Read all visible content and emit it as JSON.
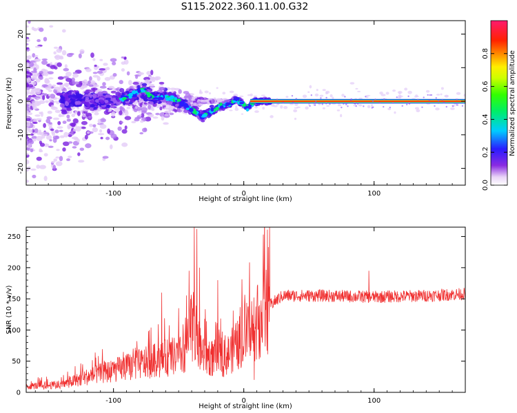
{
  "title": "S115.2022.360.11.00.G32",
  "chart_data": [
    {
      "type": "heatmap",
      "xlabel": "Height of straight line (km)",
      "ylabel": "Frequency (Hz)",
      "xlim": [
        -167,
        170
      ],
      "ylim": [
        -25,
        24
      ],
      "x_ticks": [
        -100,
        0,
        100
      ],
      "y_ticks": [
        20,
        10,
        0,
        -10,
        -20
      ],
      "colorbar": {
        "label": "Normalized spectral amplitude",
        "ticks": [
          0.0,
          0.2,
          0.4,
          0.6,
          0.8
        ],
        "range": [
          0,
          1
        ]
      },
      "ridge": [
        {
          "x": -130,
          "y": 0
        },
        {
          "x": -100,
          "y": 0
        },
        {
          "x": -85,
          "y": 2
        },
        {
          "x": -78,
          "y": 3.5
        },
        {
          "x": -70,
          "y": 1
        },
        {
          "x": -60,
          "y": 1.5
        },
        {
          "x": -50,
          "y": 0
        },
        {
          "x": -40,
          "y": -2.5
        },
        {
          "x": -32,
          "y": -4.5
        },
        {
          "x": -25,
          "y": -3
        },
        {
          "x": -18,
          "y": -1.5
        },
        {
          "x": -10,
          "y": -0.5
        },
        {
          "x": -5,
          "y": 0.5
        },
        {
          "x": 3,
          "y": -2
        },
        {
          "x": 8,
          "y": 0
        },
        {
          "x": 20,
          "y": 0
        },
        {
          "x": 170,
          "y": 0
        }
      ]
    },
    {
      "type": "line",
      "xlabel": "Height of straight line (km)",
      "ylabel": "SNR (10 * v/v)",
      "xlim": [
        -167,
        170
      ],
      "ylim": [
        0,
        265
      ],
      "x_ticks": [
        -100,
        0,
        100
      ],
      "y_ticks": [
        0,
        50,
        100,
        150,
        200,
        250
      ],
      "series": [
        {
          "color": "#f03030",
          "envelope": [
            {
              "x": -167,
              "y": 10
            },
            {
              "x": -140,
              "y": 12
            },
            {
              "x": -120,
              "y": 25
            },
            {
              "x": -100,
              "y": 35
            },
            {
              "x": -80,
              "y": 45
            },
            {
              "x": -60,
              "y": 55
            },
            {
              "x": -45,
              "y": 60
            },
            {
              "x": -40,
              "y": 110
            },
            {
              "x": -35,
              "y": 70
            },
            {
              "x": -25,
              "y": 55
            },
            {
              "x": -15,
              "y": 55
            },
            {
              "x": -5,
              "y": 75
            },
            {
              "x": 0,
              "y": 90
            },
            {
              "x": 10,
              "y": 110
            },
            {
              "x": 20,
              "y": 140
            },
            {
              "x": 30,
              "y": 155
            },
            {
              "x": 60,
              "y": 155
            },
            {
              "x": 100,
              "y": 153
            },
            {
              "x": 140,
              "y": 155
            },
            {
              "x": 170,
              "y": 158
            }
          ],
          "spikes": [
            {
              "x": -38,
              "y": 265
            },
            {
              "x": -36,
              "y": 262
            },
            {
              "x": -34,
              "y": 200
            },
            {
              "x": -42,
              "y": 195
            },
            {
              "x": -20,
              "y": 180
            },
            {
              "x": -63,
              "y": 160
            },
            {
              "x": -50,
              "y": 135
            },
            {
              "x": 12,
              "y": 140
            },
            {
              "x": 96,
              "y": 195
            },
            {
              "x": 8,
              "y": 20
            }
          ]
        }
      ]
    }
  ]
}
